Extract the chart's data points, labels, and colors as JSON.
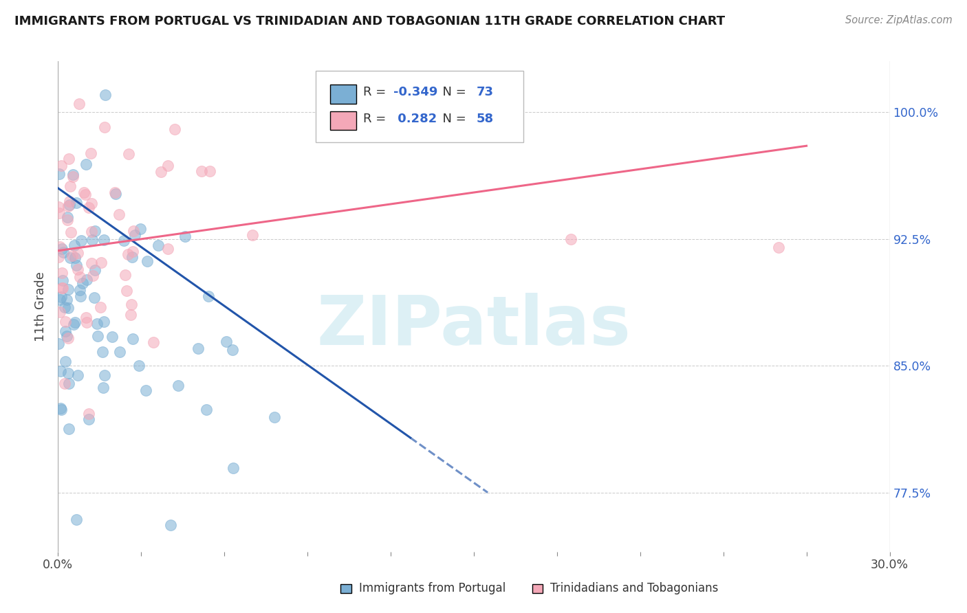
{
  "title": "IMMIGRANTS FROM PORTUGAL VS TRINIDADIAN AND TOBAGONIAN 11TH GRADE CORRELATION CHART",
  "source": "Source: ZipAtlas.com",
  "ylabel": "11th Grade",
  "y_ticks": [
    77.5,
    85.0,
    92.5,
    100.0
  ],
  "y_tick_labels": [
    "77.5%",
    "85.0%",
    "92.5%",
    "100.0%"
  ],
  "xmin": 0.0,
  "xmax": 30.0,
  "ymin": 74.0,
  "ymax": 103.0,
  "blue_R": -0.349,
  "blue_N": 73,
  "pink_R": 0.282,
  "pink_N": 58,
  "blue_color": "#7BAFD4",
  "pink_color": "#F4A8B8",
  "blue_trend_color": "#2255AA",
  "pink_trend_color": "#EE6688",
  "watermark_text": "ZIPatlas",
  "watermark_color": "#D8EEF4",
  "legend_blue_label": "Immigrants from Portugal",
  "legend_pink_label": "Trinidadians and Tobagonians",
  "blue_seed": 42,
  "pink_seed": 99,
  "blue_trend_y0": 95.5,
  "blue_trend_y1": 77.5,
  "blue_trend_x0": 0.0,
  "blue_trend_x1": 15.5,
  "pink_trend_y0": 91.8,
  "pink_trend_y1": 98.0,
  "pink_trend_x0": 0.0,
  "pink_trend_x1": 27.0
}
